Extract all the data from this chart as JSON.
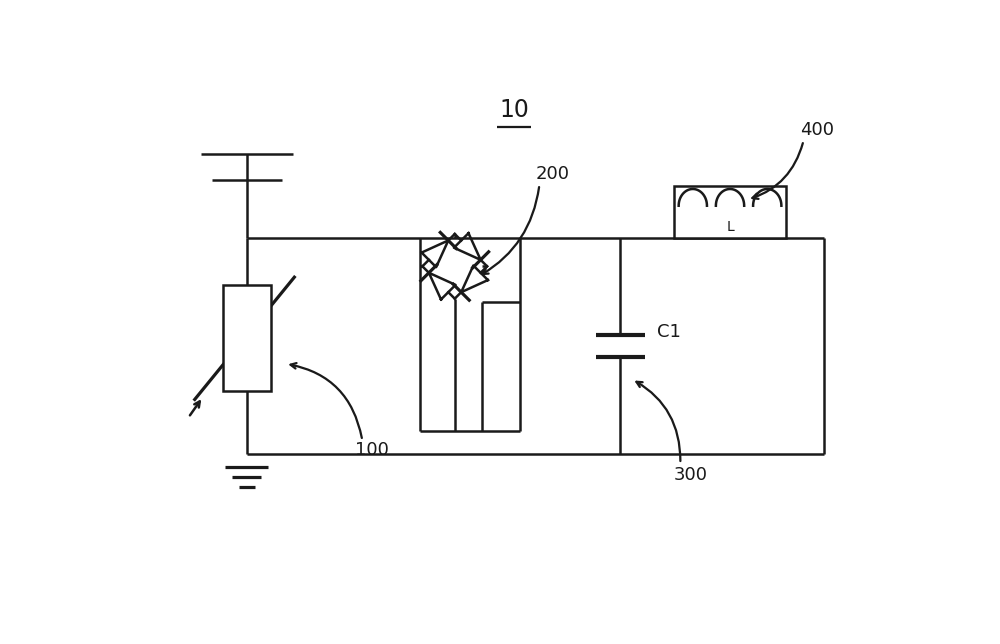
{
  "bg_color": "#ffffff",
  "line_color": "#1a1a1a",
  "lw": 1.8,
  "labels": {
    "title": "10",
    "L100": "100",
    "L200": "200",
    "L300": "300",
    "L400": "400",
    "LC1": "C1"
  }
}
